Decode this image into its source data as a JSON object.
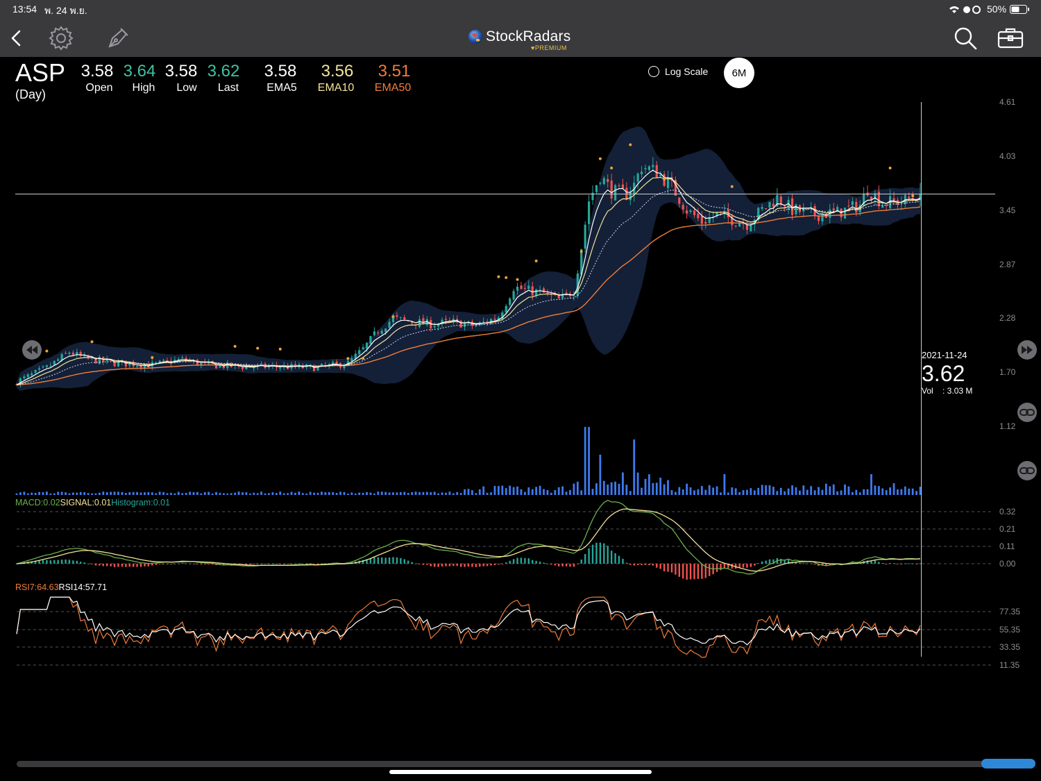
{
  "status_bar": {
    "time": "13:54",
    "date": "พ. 24 พ.ย.",
    "battery": "50%"
  },
  "nav": {
    "brand": "StockRadars",
    "brand_sub": "♥PREMIUM"
  },
  "quote": {
    "ticker": "ASP",
    "period": "(Day)",
    "open": {
      "value": "3.58",
      "label": "Open"
    },
    "high": {
      "value": "3.64",
      "label": "High"
    },
    "low": {
      "value": "3.58",
      "label": "Low"
    },
    "last": {
      "value": "3.62",
      "label": "Last"
    },
    "ema5": {
      "value": "3.58",
      "label": "EMA5"
    },
    "ema10": {
      "value": "3.56",
      "label": "EMA10"
    },
    "ema50": {
      "value": "3.51",
      "label": "EMA50"
    }
  },
  "controls": {
    "log_scale_label": "Log Scale",
    "log_scale_checked": false,
    "range": "6M"
  },
  "price_axis": [
    "4.61",
    "4.03",
    "3.45",
    "2.87",
    "2.28",
    "1.70",
    "1.12"
  ],
  "macd_axis": [
    "0.32",
    "0.21",
    "0.11",
    "0.00"
  ],
  "rsi_axis": [
    "77.35",
    "55.35",
    "33.35",
    "11.35"
  ],
  "indicators": {
    "macd_label": "MACD:0.02",
    "signal_label": "SIGNAL:0.01",
    "histogram_label": "Histogram:0.01",
    "rsi7_label": "RSI7:64.63",
    "rsi14_label": "RSI14:57.71"
  },
  "crosshair": {
    "date": "2021-11-24",
    "price": "3.62",
    "vol_text": "Vol    : 3.03 M",
    "price_level": 3.62
  },
  "colors": {
    "up": "#26a69a",
    "down": "#ef5350",
    "ema5": "#ffffff",
    "ema10": "#f5e39a",
    "ema50": "#f07d3a",
    "volume": "#3d7bf0",
    "macd": "#6ab04c",
    "signal": "#f5e39a",
    "rsi7": "#f07d3a",
    "rsi14": "#ffffff"
  },
  "icons": {
    "back": "chevron-left-icon",
    "settings": "gear-icon",
    "draw": "pen-icon",
    "search": "search-icon",
    "portfolio": "briefcase-icon",
    "rewind": "rewind-icon",
    "forward": "fast-forward-icon",
    "link": "link-icon"
  },
  "chart_data": {
    "type": "candlestick",
    "title": "",
    "price_ylim": [
      1.12,
      4.61
    ],
    "price_path": [
      [
        0,
        1.6
      ],
      [
        8,
        1.75
      ],
      [
        14,
        1.92
      ],
      [
        18,
        1.85
      ],
      [
        26,
        1.8
      ],
      [
        36,
        1.78
      ],
      [
        44,
        1.84
      ],
      [
        50,
        1.78
      ],
      [
        60,
        1.76
      ],
      [
        70,
        1.76
      ],
      [
        80,
        1.75
      ],
      [
        88,
        1.8
      ],
      [
        92,
        1.95
      ],
      [
        96,
        2.15
      ],
      [
        100,
        2.28
      ],
      [
        104,
        2.25
      ],
      [
        110,
        2.22
      ],
      [
        116,
        2.24
      ],
      [
        122,
        2.2
      ],
      [
        128,
        2.3
      ],
      [
        132,
        2.62
      ],
      [
        136,
        2.58
      ],
      [
        140,
        2.55
      ],
      [
        144,
        2.48
      ],
      [
        148,
        2.58
      ],
      [
        150,
        3.05
      ],
      [
        152,
        3.55
      ],
      [
        155,
        3.82
      ],
      [
        158,
        3.65
      ],
      [
        162,
        3.62
      ],
      [
        164,
        3.72
      ],
      [
        166,
        3.92
      ],
      [
        170,
        3.86
      ],
      [
        174,
        3.7
      ],
      [
        178,
        3.45
      ],
      [
        182,
        3.32
      ],
      [
        186,
        3.4
      ],
      [
        190,
        3.35
      ],
      [
        194,
        3.3
      ],
      [
        198,
        3.45
      ],
      [
        202,
        3.58
      ],
      [
        206,
        3.45
      ],
      [
        212,
        3.4
      ],
      [
        218,
        3.42
      ],
      [
        224,
        3.5
      ],
      [
        226,
        3.68
      ],
      [
        230,
        3.52
      ],
      [
        236,
        3.55
      ],
      [
        240,
        3.62
      ]
    ],
    "macd_ylim": [
      -0.1,
      0.35
    ],
    "rsi_ylim": [
      0,
      100
    ],
    "rsi_levels": [
      77.35,
      55.35,
      33.35,
      11.35
    ],
    "crosshair_date": "2021-11-24",
    "last_close": 3.62,
    "last_volume": "3.03 M"
  }
}
